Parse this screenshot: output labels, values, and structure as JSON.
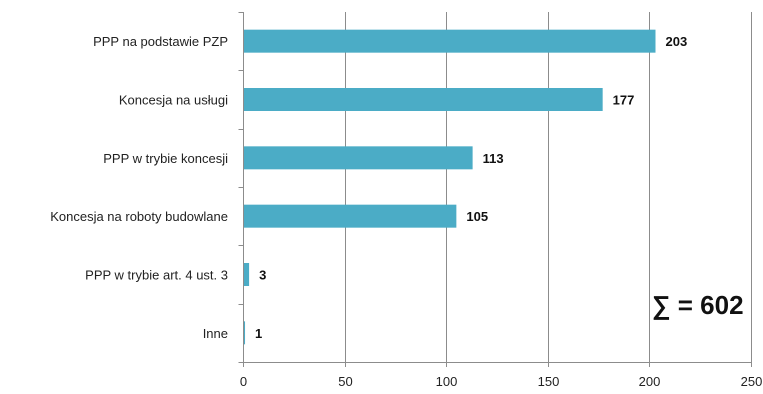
{
  "chart_data": {
    "type": "bar",
    "orientation": "horizontal",
    "categories": [
      "PPP na podstawie PZP",
      "Koncesja na usługi",
      "PPP w trybie koncesji",
      "Koncesja na roboty budowlane",
      "PPP w trybie art. 4 ust. 3",
      "Inne"
    ],
    "values": [
      203,
      177,
      113,
      105,
      3,
      1
    ],
    "data_labels": [
      "203",
      "177",
      "113",
      "105",
      "3",
      "1"
    ],
    "xlim": [
      0,
      250
    ],
    "x_ticks": [
      0,
      50,
      100,
      150,
      200,
      250
    ],
    "x_tick_labels": [
      "0",
      "50",
      "100",
      "150",
      "200",
      "250"
    ],
    "grid": "vertical",
    "bar_color": "#4BACC6",
    "annotation": "∑ = 602"
  }
}
